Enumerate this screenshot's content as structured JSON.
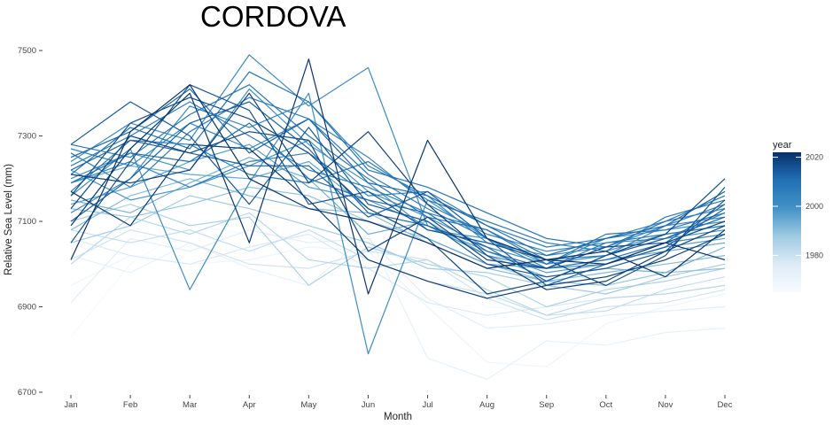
{
  "chart_data": {
    "type": "line",
    "title": "CORDOVA",
    "xlabel": "Month",
    "ylabel": "Relative Sea Level (mm)",
    "categories": [
      "Jan",
      "Feb",
      "Mar",
      "Apr",
      "May",
      "Jun",
      "Jul",
      "Aug",
      "Sep",
      "Oct",
      "Nov",
      "Dec"
    ],
    "yticks": [
      6700,
      6900,
      7100,
      7300,
      7500
    ],
    "ylim": [
      6700,
      7525
    ],
    "grid": false,
    "legend": {
      "title": "year",
      "type": "continuous colorbar",
      "position": "right",
      "range": [
        1965,
        2022
      ],
      "ticks": [
        1980,
        2000,
        2020
      ],
      "color_low": "#f7fbff",
      "color_high": "#08306b"
    },
    "series": [
      {
        "year": 1966,
        "values": [
          6830,
          7000,
          7090,
          7070,
          7060,
          7050,
          6980,
          6900,
          6890,
          6920,
          6950,
          6960
        ]
      },
      {
        "year": 1969,
        "values": [
          6950,
          7020,
          7000,
          7010,
          7040,
          7030,
          6900,
          6770,
          6760,
          6860,
          6900,
          6930
        ]
      },
      {
        "year": 1972,
        "values": [
          7020,
          6980,
          7050,
          6990,
          6950,
          7070,
          6780,
          6730,
          6820,
          6810,
          6840,
          6850
        ]
      },
      {
        "year": 1974,
        "values": [
          6910,
          7060,
          7030,
          7080,
          7050,
          7060,
          6920,
          6850,
          6860,
          6880,
          6890,
          6900
        ]
      },
      {
        "year": 1977,
        "values": [
          7060,
          7020,
          7000,
          7040,
          7070,
          6990,
          6910,
          6880,
          6900,
          6920,
          6930,
          6950
        ]
      },
      {
        "year": 1979,
        "values": [
          7010,
          7080,
          7050,
          7000,
          6990,
          7030,
          7010,
          6920,
          6870,
          6900,
          6910,
          6940
        ]
      },
      {
        "year": 1981,
        "values": [
          7080,
          7050,
          7080,
          7030,
          7080,
          7010,
          6960,
          6930,
          6880,
          6890,
          6940,
          6970
        ]
      },
      {
        "year": 1983,
        "values": [
          7000,
          7110,
          7070,
          7120,
          7010,
          6990,
          7010,
          6940,
          6880,
          6920,
          6930,
          6950
        ]
      },
      {
        "year": 1985,
        "values": [
          7100,
          7140,
          7090,
          7110,
          6950,
          7040,
          7000,
          6970,
          6900,
          6940,
          6960,
          6990
        ]
      },
      {
        "year": 1987,
        "values": [
          7050,
          7090,
          7160,
          7130,
          7090,
          7050,
          6990,
          6980,
          6950,
          6930,
          6970,
          7000
        ]
      },
      {
        "year": 1989,
        "values": [
          7130,
          7110,
          7140,
          7180,
          7160,
          7100,
          7060,
          7000,
          6960,
          6950,
          6980,
          6990
        ]
      },
      {
        "year": 1991,
        "values": [
          7080,
          7160,
          7200,
          7160,
          7130,
          7120,
          7050,
          6990,
          6960,
          6980,
          7000,
          7020
        ]
      },
      {
        "year": 1993,
        "values": [
          7150,
          7120,
          7190,
          7250,
          7200,
          7070,
          7100,
          7020,
          6970,
          6990,
          6980,
          7040
        ]
      },
      {
        "year": 1995,
        "values": [
          7190,
          7230,
          7210,
          7200,
          7240,
          7130,
          7060,
          7000,
          6990,
          7010,
          7030,
          7050
        ]
      },
      {
        "year": 1997,
        "values": [
          7140,
          7180,
          7240,
          7280,
          7180,
          7150,
          7090,
          7030,
          6980,
          7000,
          7040,
          7060
        ]
      },
      {
        "year": 1999,
        "values": [
          7220,
          7150,
          7180,
          7230,
          7290,
          7170,
          7110,
          7040,
          7000,
          7020,
          7060,
          7080
        ]
      },
      {
        "year": 2000,
        "values": [
          7200,
          7260,
          7220,
          7410,
          7280,
          7190,
          7080,
          7060,
          7010,
          7030,
          7070,
          7090
        ]
      },
      {
        "year": 2001,
        "values": [
          7160,
          7270,
          6940,
          7190,
          7400,
          6790,
          7150,
          7060,
          7000,
          7060,
          7080,
          7100
        ]
      },
      {
        "year": 2002,
        "values": [
          7240,
          7330,
          7290,
          7490,
          7370,
          7460,
          7090,
          7020,
          6990,
          7000,
          7050,
          7070
        ]
      },
      {
        "year": 2003,
        "values": [
          7120,
          7200,
          7370,
          7320,
          7380,
          7230,
          7160,
          7050,
          7020,
          7040,
          7090,
          7110
        ]
      },
      {
        "year": 2004,
        "values": [
          7270,
          7230,
          7330,
          7270,
          7340,
          7250,
          7140,
          7070,
          7030,
          7050,
          7060,
          7120
        ]
      },
      {
        "year": 2005,
        "values": [
          7190,
          7240,
          7180,
          7240,
          7260,
          7160,
          7170,
          7090,
          7040,
          7060,
          7100,
          7130
        ]
      },
      {
        "year": 2006,
        "values": [
          7230,
          7300,
          7380,
          7300,
          7220,
          7180,
          7120,
          7080,
          7010,
          7020,
          7090,
          7140
        ]
      },
      {
        "year": 2007,
        "values": [
          7260,
          7180,
          7310,
          7390,
          7340,
          7210,
          7130,
          7060,
          6990,
          7050,
          7070,
          7090
        ]
      },
      {
        "year": 2008,
        "values": [
          7170,
          7290,
          7280,
          7210,
          7190,
          7240,
          7150,
          7100,
          7050,
          7030,
          7110,
          7150
        ]
      },
      {
        "year": 2009,
        "values": [
          7280,
          7250,
          7350,
          7420,
          7300,
          7200,
          7110,
          7080,
          7000,
          7070,
          7080,
          7120
        ]
      },
      {
        "year": 2010,
        "values": [
          7210,
          7320,
          7270,
          7450,
          7380,
          7220,
          7180,
          7120,
          7060,
          7040,
          7100,
          7160
        ]
      },
      {
        "year": 2011,
        "values": [
          7190,
          7260,
          7240,
          7330,
          7200,
          7150,
          7120,
          7030,
          6990,
          7010,
          7050,
          7140
        ]
      },
      {
        "year": 2012,
        "values": [
          7250,
          7310,
          7410,
          7260,
          7340,
          7190,
          7160,
          7090,
          7020,
          7060,
          7090,
          7170
        ]
      },
      {
        "year": 2013,
        "values": [
          7100,
          7200,
          7330,
          7380,
          7270,
          7120,
          7090,
          7040,
          6960,
          7020,
          7060,
          7110
        ]
      },
      {
        "year": 2014,
        "values": [
          7220,
          7290,
          7260,
          7230,
          7230,
          7110,
          7170,
          7060,
          6950,
          7000,
          7040,
          7130
        ]
      },
      {
        "year": 2015,
        "values": [
          7280,
          7380,
          7300,
          7140,
          7320,
          7140,
          7100,
          7000,
          6970,
          6990,
          7030,
          7150
        ]
      },
      {
        "year": 2016,
        "values": [
          7050,
          7240,
          7420,
          7360,
          7140,
          7170,
          7080,
          7050,
          7010,
          6950,
          7020,
          7180
        ]
      },
      {
        "year": 2017,
        "values": [
          7160,
          7330,
          7390,
          7340,
          7260,
          7130,
          7060,
          6930,
          6960,
          7020,
          7070,
          7200
        ]
      },
      {
        "year": 2018,
        "values": [
          7130,
          7300,
          7260,
          7310,
          7290,
          7030,
          7110,
          7010,
          6990,
          7040,
          7050,
          7100
        ]
      },
      {
        "year": 2019,
        "values": [
          7210,
          7190,
          7220,
          7400,
          7190,
          7310,
          7140,
          7020,
          6940,
          6960,
          7030,
          7090
        ]
      },
      {
        "year": 2020,
        "values": [
          7170,
          7090,
          7280,
          7270,
          7150,
          7010,
          6960,
          6920,
          6950,
          6970,
          7010,
          7070
        ]
      },
      {
        "year": 2021,
        "values": [
          7090,
          7270,
          7400,
          7050,
          7480,
          6930,
          7290,
          7060,
          7010,
          7030,
          6970,
          7080
        ]
      },
      {
        "year": 2022,
        "values": [
          7010,
          7310,
          7420,
          7200,
          7130,
          7100,
          7050,
          6990,
          7010,
          7000,
          7050,
          7010
        ]
      }
    ]
  }
}
